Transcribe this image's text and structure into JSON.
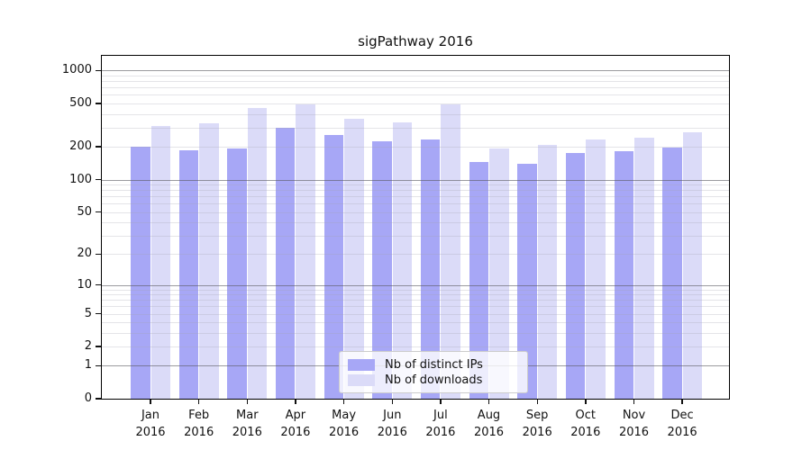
{
  "title": "sigPathway 2016",
  "colors": {
    "bar_distinct_ips": "#a7a7f6",
    "bar_downloads": "#dbdbf8",
    "grid_minor": "#e6e6ea",
    "grid_major": "#9b9b9f",
    "spine": "#000000",
    "background": "#ffffff",
    "legend_border": "#cccccc"
  },
  "chart_data": {
    "type": "bar",
    "title": "sigPathway 2016",
    "x_tick_months": [
      "Jan",
      "Feb",
      "Mar",
      "Apr",
      "May",
      "Jun",
      "Jul",
      "Aug",
      "Sep",
      "Oct",
      "Nov",
      "Dec"
    ],
    "x_tick_year": "2016",
    "series": [
      {
        "name": "Nb of distinct IPs",
        "color": "#a7a7f6",
        "values": [
          200,
          185,
          195,
          300,
          258,
          226,
          234,
          146,
          140,
          176,
          182,
          196
        ]
      },
      {
        "name": "Nb of downloads",
        "color": "#dbdbf8",
        "values": [
          310,
          330,
          455,
          490,
          365,
          335,
          495,
          194,
          208,
          234,
          245,
          272
        ]
      }
    ],
    "y_ticks": [
      0,
      1,
      2,
      5,
      10,
      20,
      50,
      100,
      200,
      500,
      1000
    ],
    "y_scale": "log(1+y)",
    "ylim": [
      0,
      1390
    ],
    "xlabel": "",
    "ylabel": "",
    "grid": {
      "on": true,
      "drawn_over_bars": true,
      "major_lines": [
        1,
        10,
        100,
        1000
      ],
      "minor_lines": [
        2,
        3,
        4,
        5,
        6,
        7,
        8,
        9,
        20,
        30,
        40,
        50,
        60,
        70,
        80,
        90,
        200,
        300,
        400,
        500,
        600,
        700,
        800,
        900
      ]
    },
    "legend": {
      "entries": [
        "Nb of distinct IPs",
        "Nb of downloads"
      ],
      "position": "lower-center"
    }
  }
}
